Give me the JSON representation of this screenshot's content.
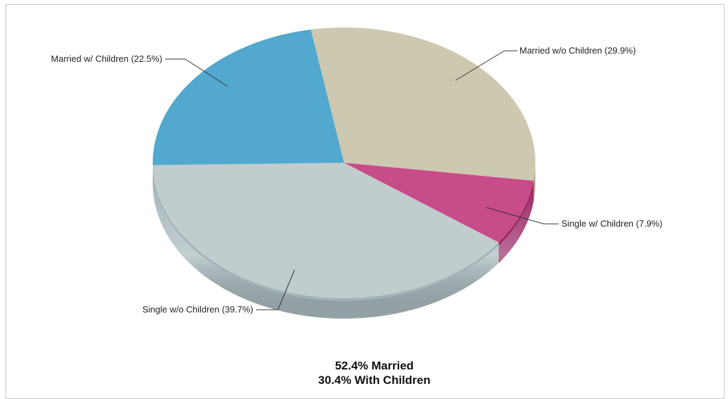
{
  "chart_data": {
    "type": "pie",
    "style": "3d-beveled",
    "slices": [
      {
        "label": "Married w/o Children (29.9%)",
        "value": 29.9,
        "color": "#cdc8b0",
        "side": "#aaa58c"
      },
      {
        "label": "Single w/ Children (7.9%)",
        "value": 7.9,
        "color": "#c84b8a",
        "side": "#96205f"
      },
      {
        "label": "Single w/o Children (39.7%)",
        "value": 39.7,
        "color": "#c1cccd",
        "side": "#a3b4b8"
      },
      {
        "label": "Married w/ Children (22.5%)",
        "value": 22.5,
        "color": "#52a8cf",
        "side": "#2f86b4"
      }
    ],
    "summary": [
      "52.4% Married",
      "30.4% With Children"
    ]
  }
}
